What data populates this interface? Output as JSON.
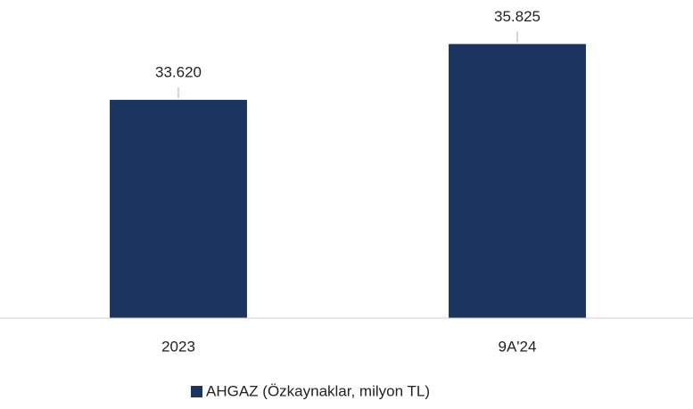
{
  "chart_data": {
    "type": "bar",
    "categories": [
      "2023",
      "9A'24"
    ],
    "series": [
      {
        "name": "AHGAZ (Özkaynaklar, milyon TL)",
        "color": "#1c355e",
        "values": [
          33620,
          35825
        ],
        "value_labels": [
          "33.620",
          "35.825"
        ]
      }
    ],
    "ylim": [
      25000,
      37000
    ]
  }
}
